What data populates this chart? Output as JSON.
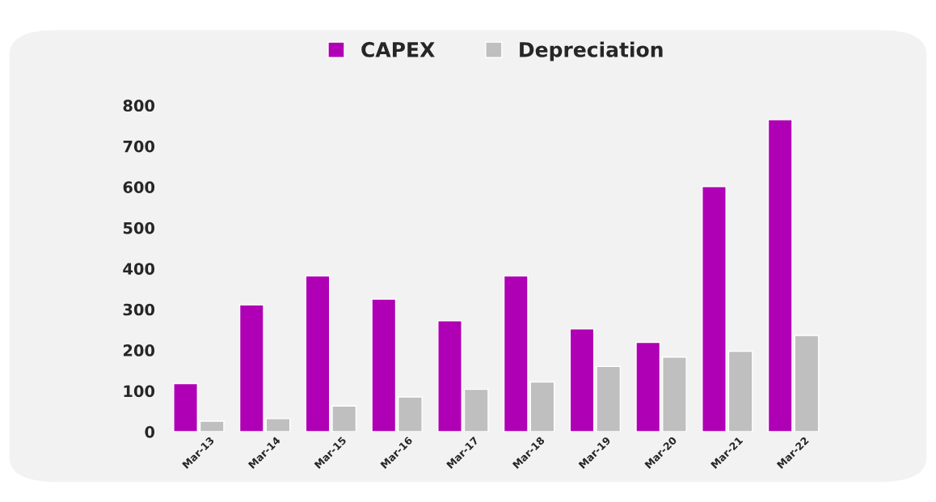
{
  "chart_data": {
    "type": "bar",
    "categories": [
      "Mar-13",
      "Mar-14",
      "Mar-15",
      "Mar-16",
      "Mar-17",
      "Mar-18",
      "Mar-19",
      "Mar-20",
      "Mar-21",
      "Mar-22"
    ],
    "series": [
      {
        "name": "CAPEX",
        "color": "#b000b5",
        "values": [
          118,
          311,
          382,
          325,
          272,
          382,
          252,
          219,
          601,
          765
        ]
      },
      {
        "name": "Depreciation",
        "color": "#bfbfbf",
        "values": [
          26,
          32,
          63,
          85,
          104,
          122,
          160,
          183,
          197,
          236
        ]
      }
    ],
    "ylim": [
      0,
      800
    ],
    "yticks": [
      0,
      100,
      200,
      300,
      400,
      500,
      600,
      700,
      800
    ],
    "grid": false,
    "legend": "top"
  }
}
